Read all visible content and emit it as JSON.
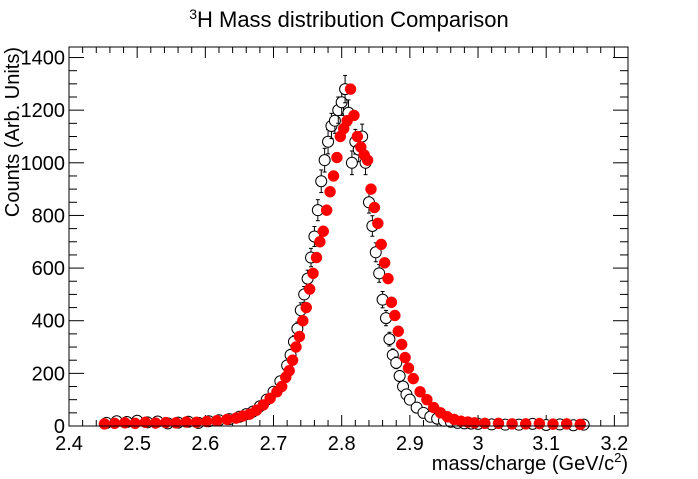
{
  "chart_data": {
    "type": "scatter",
    "title_prefix_sup": "3",
    "title_main": "H Mass distribution Comparison",
    "xlabel_main": "mass/charge (GeV/c",
    "xlabel_sup": "2",
    "xlabel_close": ")",
    "ylabel": "Counts (Arb. Units)",
    "xlim": [
      2.4,
      3.22
    ],
    "ylim": [
      0,
      1440
    ],
    "grid": false,
    "x_ticks": [
      2.4,
      2.5,
      2.6,
      2.7,
      2.8,
      2.9,
      3.0,
      3.1,
      3.2
    ],
    "x_tick_labels": [
      "2.4",
      "2.5",
      "2.6",
      "2.7",
      "2.8",
      "2.9",
      "3",
      "3.1",
      "3.2"
    ],
    "y_ticks": [
      0,
      200,
      400,
      600,
      800,
      1000,
      1200,
      1400
    ],
    "y_tick_labels": [
      "0",
      "200",
      "400",
      "600",
      "800",
      "1000",
      "1200",
      "1400"
    ],
    "series": [
      {
        "style": "open-circle",
        "color": "#000000",
        "x": [
          2.455,
          2.47,
          2.485,
          2.5,
          2.515,
          2.53,
          2.545,
          2.56,
          2.575,
          2.59,
          2.605,
          2.62,
          2.635,
          2.65,
          2.66,
          2.67,
          2.68,
          2.69,
          2.7,
          2.71,
          2.72,
          2.725,
          2.73,
          2.735,
          2.74,
          2.745,
          2.75,
          2.755,
          2.76,
          2.765,
          2.77,
          2.775,
          2.78,
          2.785,
          2.79,
          2.795,
          2.8,
          2.805,
          2.81,
          2.815,
          2.82,
          2.825,
          2.83,
          2.835,
          2.84,
          2.845,
          2.85,
          2.855,
          2.86,
          2.865,
          2.87,
          2.875,
          2.88,
          2.885,
          2.89,
          2.895,
          2.9,
          2.91,
          2.92,
          2.93,
          2.94,
          2.95,
          2.96,
          2.97,
          2.98,
          2.99,
          3.0,
          3.02,
          3.04,
          3.06,
          3.08,
          3.1,
          3.12,
          3.14,
          3.155
        ],
        "y": [
          12,
          18,
          15,
          20,
          14,
          17,
          10,
          13,
          16,
          12,
          18,
          22,
          26,
          35,
          45,
          55,
          75,
          100,
          130,
          170,
          230,
          270,
          320,
          370,
          440,
          500,
          560,
          640,
          720,
          820,
          930,
          1010,
          1080,
          1140,
          1160,
          1200,
          1230,
          1280,
          1190,
          1000,
          1080,
          1050,
          1100,
          1000,
          850,
          760,
          660,
          580,
          480,
          410,
          330,
          270,
          240,
          190,
          150,
          120,
          100,
          70,
          50,
          35,
          28,
          20,
          16,
          12,
          10,
          9,
          8,
          6,
          5,
          5,
          8,
          4,
          6,
          3,
          5
        ],
        "errors": [
          5,
          6,
          5,
          6,
          5,
          6,
          4,
          5,
          5,
          5,
          6,
          6,
          7,
          8,
          9,
          10,
          12,
          13,
          15,
          17,
          20,
          21,
          23,
          25,
          28,
          30,
          32,
          35,
          38,
          40,
          43,
          45,
          46,
          48,
          48,
          50,
          50,
          52,
          49,
          45,
          47,
          46,
          47,
          45,
          41,
          39,
          36,
          34,
          31,
          29,
          26,
          23,
          22,
          20,
          17,
          15,
          14,
          12,
          10,
          8,
          7,
          6,
          5,
          5,
          4,
          4,
          4,
          3,
          3,
          3,
          3,
          3,
          3,
          2,
          3
        ]
      },
      {
        "style": "filled-circle",
        "color": "#ff0000",
        "x": [
          2.452,
          2.467,
          2.482,
          2.497,
          2.512,
          2.527,
          2.542,
          2.557,
          2.572,
          2.587,
          2.602,
          2.617,
          2.632,
          2.645,
          2.655,
          2.665,
          2.675,
          2.685,
          2.695,
          2.705,
          2.712,
          2.718,
          2.723,
          2.728,
          2.733,
          2.738,
          2.743,
          2.748,
          2.753,
          2.758,
          2.763,
          2.768,
          2.773,
          2.778,
          2.783,
          2.788,
          2.793,
          2.798,
          2.803,
          2.808,
          2.813,
          2.818,
          2.823,
          2.828,
          2.833,
          2.838,
          2.843,
          2.848,
          2.853,
          2.858,
          2.863,
          2.868,
          2.873,
          2.878,
          2.883,
          2.888,
          2.893,
          2.898,
          2.905,
          2.915,
          2.925,
          2.935,
          2.945,
          2.955,
          2.965,
          2.975,
          2.985,
          2.995,
          3.01,
          3.03,
          3.05,
          3.07,
          3.09,
          3.11,
          3.13,
          3.15
        ],
        "y": [
          8,
          10,
          12,
          10,
          14,
          11,
          13,
          12,
          15,
          14,
          17,
          20,
          25,
          30,
          38,
          45,
          60,
          80,
          105,
          130,
          150,
          185,
          210,
          250,
          300,
          340,
          400,
          450,
          520,
          580,
          640,
          700,
          740,
          820,
          890,
          950,
          1020,
          1100,
          1130,
          1160,
          1280,
          1180,
          1100,
          1060,
          1030,
          1010,
          900,
          830,
          770,
          690,
          620,
          560,
          470,
          420,
          360,
          310,
          260,
          220,
          180,
          130,
          100,
          70,
          50,
          35,
          25,
          18,
          15,
          12,
          10,
          10,
          8,
          8,
          9,
          7,
          8,
          6
        ]
      }
    ]
  }
}
